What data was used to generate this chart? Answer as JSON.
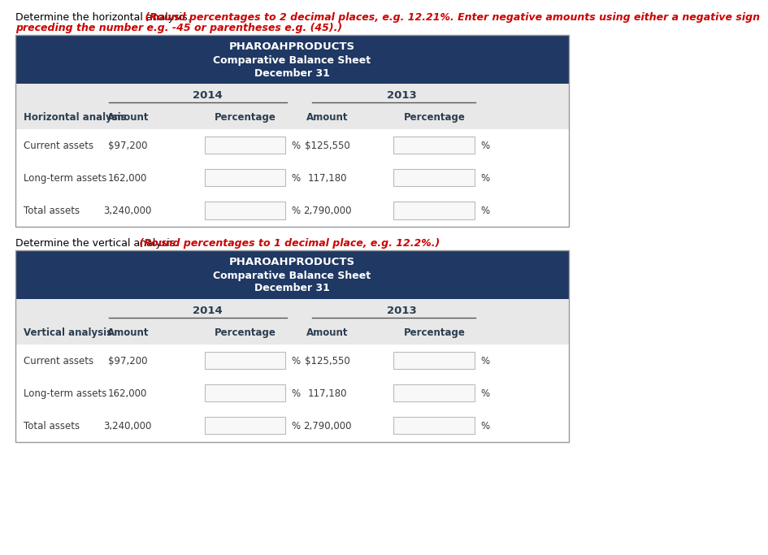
{
  "page_bg": "#ffffff",
  "header_bg": "#1f3864",
  "subheader_bg": "#e8e8e8",
  "row_bg": "#ffffff",
  "header_text_color": "#ffffff",
  "subheader_text_color": "#2c3e50",
  "cell_text_color": "#3a3a3a",
  "input_box_color": "#f8f8f8",
  "input_box_border": "#bbbbbb",
  "table_title": "PHAROAHPRODUCTS",
  "table_sub1": "Comparative Balance Sheet",
  "table_sub2": "December 31",
  "year_left": "2014",
  "year_right": "2013",
  "col_headers_h": [
    "Horizontal analysis",
    "Amount",
    "Percentage",
    "Amount",
    "Percentage"
  ],
  "col_headers_v": [
    "Vertical analysis",
    "Amount",
    "Percentage",
    "Amount",
    "Percentage"
  ],
  "rows": [
    [
      "Current assets",
      "$97,200",
      "$125,550"
    ],
    [
      "Long-term assets",
      "162,000",
      "117,180"
    ],
    [
      "Total assets",
      "3,240,000",
      "2,790,000"
    ]
  ],
  "red_color": "#cc0000",
  "instr1_black": "Determine the horizontal analysis.",
  "instr1_red_L1": " (Round percentages to 2 decimal places, e.g. 12.21%. Enter negative amounts using either a negative sign",
  "instr1_red_L2": "preceding the number e.g. -45 or parentheses e.g. (45).)",
  "instr2_black": "Determine the vertical analysis.",
  "instr2_red": " (Round percentages to 1 decimal place, e.g. 12.2%.)"
}
